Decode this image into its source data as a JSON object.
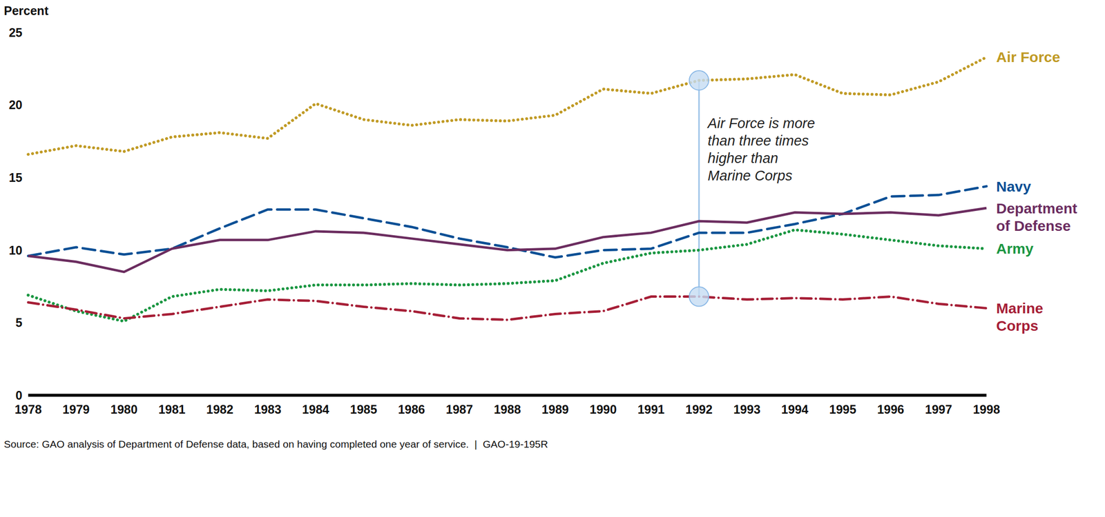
{
  "chart_data": {
    "type": "line",
    "y_label": "Percent",
    "source": "Source: GAO analysis of Department of Defense data, based on having completed one year of service.  |  GAO-19-195R",
    "x": [
      1978,
      1979,
      1980,
      1981,
      1982,
      1983,
      1984,
      1985,
      1986,
      1987,
      1988,
      1989,
      1990,
      1991,
      1992,
      1993,
      1994,
      1995,
      1996,
      1997,
      1998
    ],
    "xlim": [
      1978,
      1998
    ],
    "xticks": [
      1978,
      1979,
      1980,
      1981,
      1982,
      1983,
      1984,
      1985,
      1986,
      1987,
      1988,
      1989,
      1990,
      1991,
      1992,
      1993,
      1994,
      1995,
      1996,
      1997,
      1998
    ],
    "ylim": [
      0,
      25
    ],
    "yticks": [
      0,
      5,
      10,
      15,
      20,
      25
    ],
    "grid": false,
    "series": [
      {
        "name": "Air Force",
        "color": "#c09a24",
        "line_style": "dotted",
        "values": [
          16.6,
          17.2,
          16.8,
          17.8,
          18.1,
          17.7,
          20.1,
          19.0,
          18.6,
          19.0,
          18.9,
          19.3,
          21.1,
          20.8,
          21.7,
          21.8,
          22.1,
          20.8,
          20.7,
          21.6,
          23.3
        ]
      },
      {
        "name": "Navy",
        "color": "#0a4f95",
        "line_style": "dashed",
        "values": [
          9.6,
          10.2,
          9.7,
          10.1,
          11.5,
          12.8,
          12.8,
          12.2,
          11.6,
          10.8,
          10.2,
          9.5,
          10.0,
          10.1,
          11.2,
          11.2,
          11.8,
          12.5,
          13.7,
          13.8,
          14.4
        ]
      },
      {
        "name": "Department of Defense",
        "color": "#6b2c5f",
        "line_style": "solid",
        "values": [
          9.6,
          9.2,
          8.5,
          10.1,
          10.7,
          10.7,
          11.3,
          11.2,
          10.8,
          10.4,
          10.0,
          10.1,
          10.9,
          11.2,
          12.0,
          11.9,
          12.6,
          12.5,
          12.6,
          12.4,
          12.9
        ]
      },
      {
        "name": "Army",
        "color": "#1a9641",
        "line_style": "dotted",
        "values": [
          6.9,
          5.8,
          5.1,
          6.8,
          7.3,
          7.2,
          7.6,
          7.6,
          7.7,
          7.6,
          7.7,
          7.9,
          9.1,
          9.8,
          10.0,
          10.4,
          11.4,
          11.1,
          10.7,
          10.3,
          10.1
        ]
      },
      {
        "name": "Marine Corps",
        "color": "#a61e36",
        "line_style": "dashdot",
        "values": [
          6.4,
          5.9,
          5.3,
          5.6,
          6.1,
          6.6,
          6.5,
          6.1,
          5.8,
          5.3,
          5.2,
          5.6,
          5.8,
          6.8,
          6.8,
          6.6,
          6.7,
          6.6,
          6.8,
          6.3,
          6.0
        ]
      }
    ],
    "annotations": [
      {
        "lines": [
          "Air Force is more",
          "than three times",
          "higher than",
          "Marine Corps"
        ],
        "x": 1992,
        "from": "Air Force",
        "to": "Marine Corps"
      }
    ]
  }
}
